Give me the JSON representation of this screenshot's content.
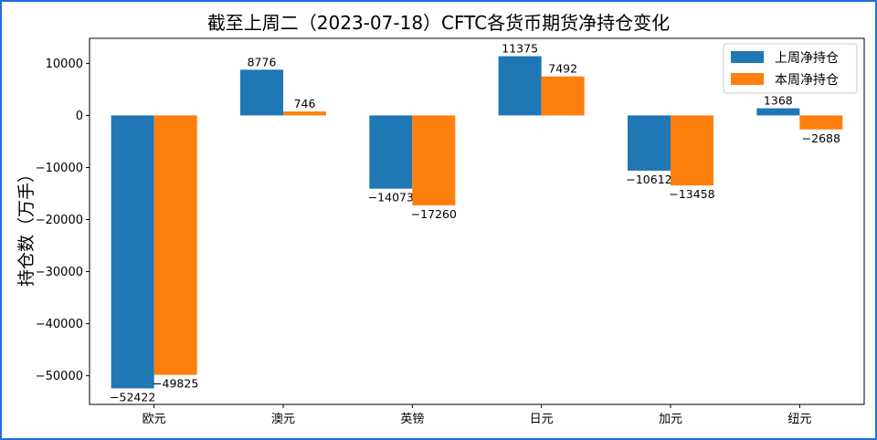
{
  "chart_data": {
    "type": "bar",
    "title": "截至上周二（2023-07-18）CFTC各货币期货净持仓变化",
    "xlabel": "",
    "ylabel": "持仓数（万手）",
    "categories": [
      "欧元",
      "澳元",
      "英镑",
      "日元",
      "加元",
      "纽元"
    ],
    "series": [
      {
        "name": "上周净持仓",
        "color": "#1f77b4",
        "values": [
          -52422,
          8776,
          -14073,
          11375,
          -10612,
          1368
        ]
      },
      {
        "name": "本周净持仓",
        "color": "#ff7f0e",
        "values": [
          -49825,
          746,
          -17260,
          7492,
          -13458,
          -2688
        ]
      }
    ],
    "ylim": [
      -55500,
      14800
    ],
    "yticks": [
      10000,
      0,
      -10000,
      -20000,
      -30000,
      -40000,
      -50000
    ],
    "ytick_labels": [
      "10000",
      "0",
      "−10000",
      "−20000",
      "−30000",
      "−40000",
      "−50000"
    ],
    "legend_position": "top-right",
    "grid": false
  }
}
